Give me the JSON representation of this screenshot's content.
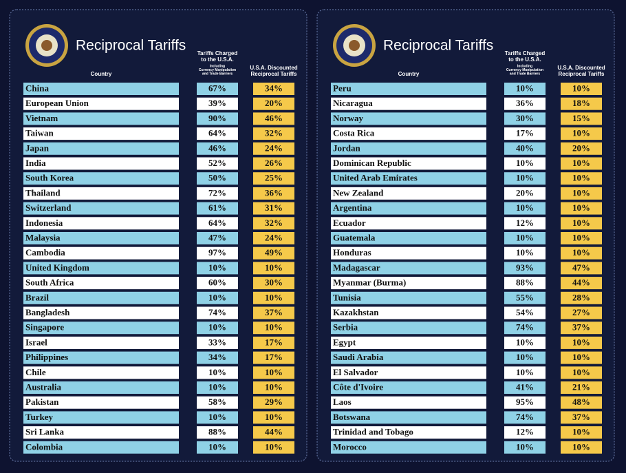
{
  "panels": [
    {
      "title": "Reciprocal Tariffs",
      "country_header": "Country",
      "charged_header": [
        "Tariffs Charged",
        "to the U.S.A."
      ],
      "charged_note": [
        "Including",
        "Currency Manipulation",
        "and Trade Barriers"
      ],
      "discount_header": [
        "U.S.A. Discounted",
        "Reciprocal Tariffs"
      ],
      "rows": [
        [
          "China",
          "67%",
          "34%"
        ],
        [
          "European Union",
          "39%",
          "20%"
        ],
        [
          "Vietnam",
          "90%",
          "46%"
        ],
        [
          "Taiwan",
          "64%",
          "32%"
        ],
        [
          "Japan",
          "46%",
          "24%"
        ],
        [
          "India",
          "52%",
          "26%"
        ],
        [
          "South Korea",
          "50%",
          "25%"
        ],
        [
          "Thailand",
          "72%",
          "36%"
        ],
        [
          "Switzerland",
          "61%",
          "31%"
        ],
        [
          "Indonesia",
          "64%",
          "32%"
        ],
        [
          "Malaysia",
          "47%",
          "24%"
        ],
        [
          "Cambodia",
          "97%",
          "49%"
        ],
        [
          "United Kingdom",
          "10%",
          "10%"
        ],
        [
          "South Africa",
          "60%",
          "30%"
        ],
        [
          "Brazil",
          "10%",
          "10%"
        ],
        [
          "Bangladesh",
          "74%",
          "37%"
        ],
        [
          "Singapore",
          "10%",
          "10%"
        ],
        [
          "Israel",
          "33%",
          "17%"
        ],
        [
          "Philippines",
          "34%",
          "17%"
        ],
        [
          "Chile",
          "10%",
          "10%"
        ],
        [
          "Australia",
          "10%",
          "10%"
        ],
        [
          "Pakistan",
          "58%",
          "29%"
        ],
        [
          "Turkey",
          "10%",
          "10%"
        ],
        [
          "Sri Lanka",
          "88%",
          "44%"
        ],
        [
          "Colombia",
          "10%",
          "10%"
        ]
      ]
    },
    {
      "title": "Reciprocal Tariffs",
      "country_header": "Country",
      "charged_header": [
        "Tariffs Charged",
        "to the U.S.A."
      ],
      "charged_note": [
        "Including",
        "Currency Manipulation",
        "and Trade Barriers"
      ],
      "discount_header": [
        "U.S.A. Discounted",
        "Reciprocal Tariffs"
      ],
      "rows": [
        [
          "Peru",
          "10%",
          "10%"
        ],
        [
          "Nicaragua",
          "36%",
          "18%"
        ],
        [
          "Norway",
          "30%",
          "15%"
        ],
        [
          "Costa Rica",
          "17%",
          "10%"
        ],
        [
          "Jordan",
          "40%",
          "20%"
        ],
        [
          "Dominican Republic",
          "10%",
          "10%"
        ],
        [
          "United Arab Emirates",
          "10%",
          "10%"
        ],
        [
          "New Zealand",
          "20%",
          "10%"
        ],
        [
          "Argentina",
          "10%",
          "10%"
        ],
        [
          "Ecuador",
          "12%",
          "10%"
        ],
        [
          "Guatemala",
          "10%",
          "10%"
        ],
        [
          "Honduras",
          "10%",
          "10%"
        ],
        [
          "Madagascar",
          "93%",
          "47%"
        ],
        [
          "Myanmar (Burma)",
          "88%",
          "44%"
        ],
        [
          "Tunisia",
          "55%",
          "28%"
        ],
        [
          "Kazakhstan",
          "54%",
          "27%"
        ],
        [
          "Serbia",
          "74%",
          "37%"
        ],
        [
          "Egypt",
          "10%",
          "10%"
        ],
        [
          "Saudi Arabia",
          "10%",
          "10%"
        ],
        [
          "El Salvador",
          "10%",
          "10%"
        ],
        [
          "Côte d'Ivoire",
          "41%",
          "21%"
        ],
        [
          "Laos",
          "95%",
          "48%"
        ],
        [
          "Botswana",
          "74%",
          "37%"
        ],
        [
          "Trinidad and Tobago",
          "12%",
          "10%"
        ],
        [
          "Morocco",
          "10%",
          "10%"
        ]
      ]
    }
  ]
}
